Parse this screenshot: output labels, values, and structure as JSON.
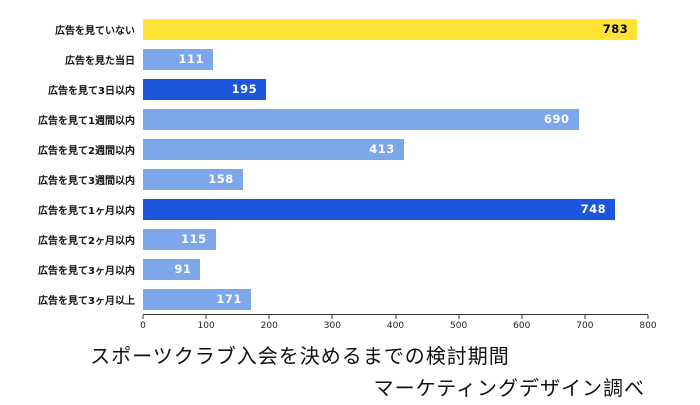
{
  "chart_data": {
    "type": "bar",
    "orientation": "horizontal",
    "title": "スポーツクラブ入会を決めるまでの検討期間",
    "source": "マーケティングデザイン調べ",
    "categories": [
      "広告を見ていない",
      "広告を見た当日",
      "広告を見て3日以内",
      "広告を見て1週間以内",
      "広告を見て2週間以内",
      "広告を見て3週間以内",
      "広告を見て1ヶ月以内",
      "広告を見て2ヶ月以内",
      "広告を見て3ヶ月以内",
      "広告を見て3ヶ月以上"
    ],
    "values": [
      783,
      111,
      195,
      690,
      413,
      158,
      748,
      115,
      91,
      171
    ],
    "bar_colors": [
      "#FFE234",
      "#7DA7EB",
      "#1C56DC",
      "#7DA7EB",
      "#7DA7EB",
      "#7DA7EB",
      "#1C56DC",
      "#7DA7EB",
      "#7DA7EB",
      "#7DA7EB"
    ],
    "value_label_colors": [
      "#000000",
      "#ffffff",
      "#ffffff",
      "#ffffff",
      "#ffffff",
      "#ffffff",
      "#ffffff",
      "#ffffff",
      "#ffffff",
      "#ffffff"
    ],
    "xlim": [
      0,
      800
    ],
    "x_ticks": [
      0,
      100,
      200,
      300,
      400,
      500,
      600,
      700,
      800
    ],
    "grid": false,
    "legend": false
  }
}
